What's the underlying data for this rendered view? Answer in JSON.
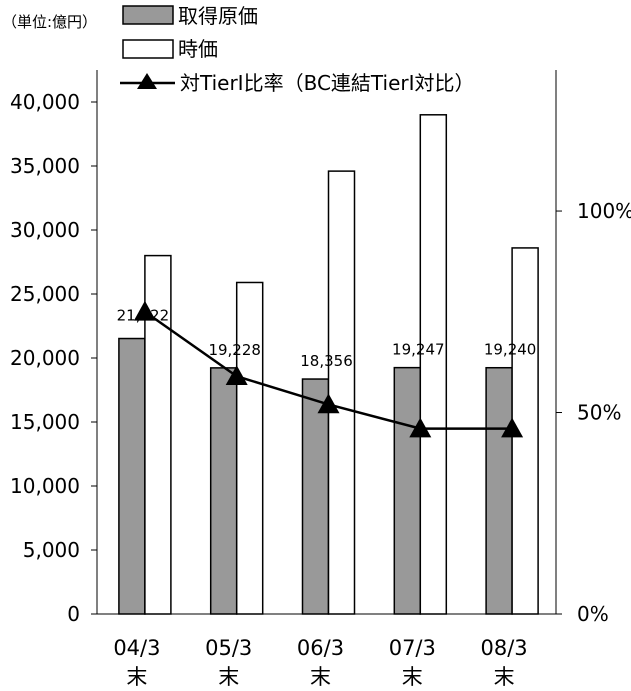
{
  "chart_data": {
    "type": "bar",
    "unit_label": "（単位:億円）",
    "categories": [
      [
        "04/3",
        "末"
      ],
      [
        "05/3",
        "末"
      ],
      [
        "06/3",
        "末"
      ],
      [
        "07/3",
        "末"
      ],
      [
        "08/3",
        "末"
      ]
    ],
    "series": [
      {
        "name": "取得原価",
        "kind": "bar",
        "axis": "left",
        "color": "#999999",
        "values": [
          21522,
          19228,
          18356,
          19247,
          19240
        ],
        "data_labels": [
          "21,522",
          "19,228",
          "18,356",
          "19,247",
          "19,240"
        ]
      },
      {
        "name": "時価",
        "kind": "bar",
        "axis": "left",
        "color": "#ffffff",
        "values": [
          28000,
          25900,
          34600,
          39000,
          28600
        ]
      },
      {
        "name": "対TierI比率（BC連結TierI対比）",
        "kind": "line",
        "axis": "right",
        "marker": "triangle",
        "color": "#000000",
        "values": [
          0.75,
          0.59,
          0.52,
          0.46,
          0.46
        ]
      }
    ],
    "left_axis": {
      "min": 0,
      "max": 40000,
      "tick_values": [
        0,
        5000,
        10000,
        15000,
        20000,
        25000,
        30000,
        35000,
        40000
      ],
      "tick_labels": [
        "0",
        "5,000",
        "10,000",
        "15,000",
        "20,000",
        "25,000",
        "30,000",
        "35,000",
        "40,000"
      ]
    },
    "right_axis": {
      "min": 0,
      "max": 1.35,
      "tick_values": [
        0,
        0.5,
        1.0
      ],
      "tick_labels": [
        "0%",
        "50%",
        "100%"
      ]
    },
    "legend_position": "top-left",
    "grid": false
  }
}
